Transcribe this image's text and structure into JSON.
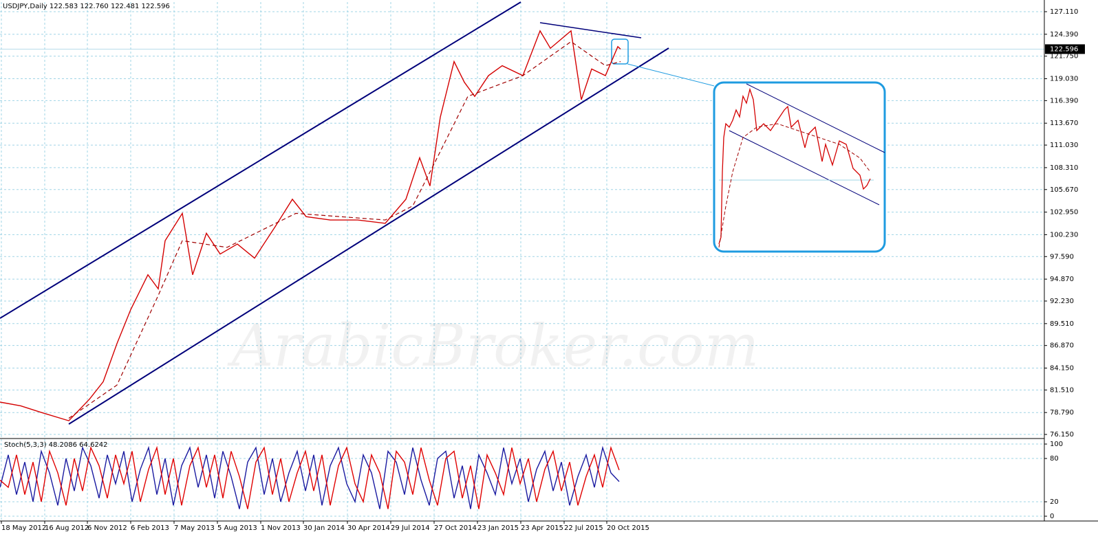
{
  "chart_data": [
    {
      "type": "line",
      "title": "USDJPY,Daily  122.583 122.760 122.481 122.596",
      "watermark": "ArabicBroker.com",
      "current_price": 122.596,
      "xlim": [
        0,
        1518
      ],
      "ylim": [
        75.74,
        128.27
      ],
      "yticks": [
        {
          "value": 127.11,
          "label": "127.110"
        },
        {
          "value": 124.39,
          "label": "124.390"
        },
        {
          "value": 121.75,
          "label": "121.750"
        },
        {
          "value": 119.03,
          "label": "119.030"
        },
        {
          "value": 116.39,
          "label": "116.390"
        },
        {
          "value": 113.67,
          "label": "113.670"
        },
        {
          "value": 111.03,
          "label": "111.030"
        },
        {
          "value": 108.31,
          "label": "108.310"
        },
        {
          "value": 105.67,
          "label": "105.670"
        },
        {
          "value": 102.95,
          "label": "102.950"
        },
        {
          "value": 100.23,
          "label": "100.230"
        },
        {
          "value": 97.59,
          "label": "97.590"
        },
        {
          "value": 94.87,
          "label": "94.870"
        },
        {
          "value": 92.23,
          "label": "92.230"
        },
        {
          "value": 89.51,
          "label": "89.510"
        },
        {
          "value": 86.87,
          "label": "86.870"
        },
        {
          "value": 84.15,
          "label": "84.150"
        },
        {
          "value": 81.51,
          "label": "81.510"
        },
        {
          "value": 78.79,
          "label": "78.790"
        },
        {
          "value": 76.15,
          "label": "76.150"
        }
      ],
      "grid": true,
      "series": [
        {
          "color": "#d40000",
          "x": [
            0,
            30,
            60,
            100,
            130,
            150,
            170,
            190,
            215,
            230,
            240,
            265,
            280,
            300,
            320,
            345,
            370,
            400,
            425,
            445,
            480,
            520,
            560,
            590,
            610,
            625,
            640,
            660,
            675,
            690,
            710,
            730,
            760,
            785,
            800,
            830,
            845,
            860,
            880,
            898,
            902
          ],
          "values": [
            80.05,
            79.6,
            78.8,
            77.8,
            80.4,
            82.5,
            87.1,
            91.2,
            95.4,
            93.7,
            99.5,
            102.8,
            95.4,
            100.4,
            97.9,
            99.1,
            97.4,
            101.2,
            104.5,
            102.4,
            102.0,
            102.0,
            101.6,
            104.5,
            109.5,
            106.1,
            114.4,
            121.1,
            118.6,
            116.9,
            119.4,
            120.6,
            119.4,
            124.8,
            122.7,
            124.8,
            116.5,
            120.2,
            119.4,
            122.9,
            122.6
          ]
        },
        {
          "color": "#a00000",
          "dashed": true,
          "x": [
            100,
            170,
            230,
            265,
            330,
            430,
            560,
            600,
            630,
            680,
            760,
            830,
            880,
            902
          ],
          "values": [
            78.1,
            82.1,
            92.9,
            99.5,
            98.7,
            102.8,
            102.0,
            103.7,
            108.6,
            116.9,
            119.4,
            123.5,
            120.6,
            121.1
          ]
        }
      ]
    },
    {
      "type": "line",
      "title": "Stoch(5,3,3) 48.2086 64.6242",
      "xlim": [
        0,
        1518
      ],
      "ylim": [
        -5.7,
        106.7
      ],
      "yticks": [
        100,
        80,
        20,
        0
      ],
      "grid": true,
      "xticks": [
        {
          "value": 2,
          "label": "18 May 2012"
        },
        {
          "value": 65,
          "label": "16 Aug 2012"
        },
        {
          "value": 127,
          "label": "6 Nov 2012"
        },
        {
          "value": 190,
          "label": "6 Feb 2013"
        },
        {
          "value": 253,
          "label": "7 May 2013"
        },
        {
          "value": 316,
          "label": "5 Aug 2013"
        },
        {
          "value": 379,
          "label": "1 Nov 2013"
        },
        {
          "value": 441,
          "label": "30 Jan 2014"
        },
        {
          "value": 505,
          "label": "30 Apr 2014"
        },
        {
          "value": 568,
          "label": "29 Jul 2014"
        },
        {
          "value": 631,
          "label": "27 Oct 2014"
        },
        {
          "value": 694,
          "label": "23 Jan 2015"
        },
        {
          "value": 757,
          "label": "23 Apr 2015"
        },
        {
          "value": 820,
          "label": "22 Jul 2015"
        },
        {
          "value": 882,
          "label": "20 Oct 2015"
        }
      ],
      "series": [
        {
          "color": "#1a1aa0",
          "x": [
            0,
            12,
            24,
            36,
            48,
            60,
            72,
            84,
            96,
            108,
            120,
            132,
            144,
            156,
            168,
            180,
            192,
            204,
            216,
            228,
            240,
            252,
            264,
            276,
            288,
            300,
            312,
            324,
            336,
            348,
            360,
            372,
            384,
            396,
            408,
            420,
            432,
            444,
            456,
            468,
            480,
            492,
            504,
            516,
            528,
            540,
            552,
            564,
            576,
            588,
            600,
            612,
            624,
            636,
            648,
            660,
            672,
            684,
            696,
            708,
            720,
            732,
            744,
            756,
            768,
            780,
            792,
            804,
            816,
            828,
            840,
            852,
            864,
            876,
            888,
            900
          ],
          "values": [
            40,
            85,
            30,
            75,
            20,
            90,
            60,
            15,
            80,
            35,
            95,
            70,
            25,
            85,
            45,
            90,
            20,
            65,
            95,
            30,
            80,
            15,
            70,
            95,
            40,
            85,
            25,
            90,
            55,
            10,
            75,
            95,
            30,
            80,
            20,
            60,
            90,
            35,
            85,
            15,
            70,
            95,
            45,
            20,
            85,
            60,
            10,
            90,
            75,
            30,
            95,
            50,
            15,
            80,
            90,
            25,
            70,
            10,
            85,
            60,
            30,
            95,
            45,
            80,
            20,
            65,
            90,
            35,
            75,
            15,
            55,
            85,
            40,
            95,
            60,
            48
          ]
        },
        {
          "color": "#e00000",
          "x": [
            0,
            12,
            24,
            36,
            48,
            60,
            72,
            84,
            96,
            108,
            120,
            132,
            144,
            156,
            168,
            180,
            192,
            204,
            216,
            228,
            240,
            252,
            264,
            276,
            288,
            300,
            312,
            324,
            336,
            348,
            360,
            372,
            384,
            396,
            408,
            420,
            432,
            444,
            456,
            468,
            480,
            492,
            504,
            516,
            528,
            540,
            552,
            564,
            576,
            588,
            600,
            612,
            624,
            636,
            648,
            660,
            672,
            684,
            696,
            708,
            720,
            732,
            744,
            756,
            768,
            780,
            792,
            804,
            816,
            828,
            840,
            852,
            864,
            876,
            888,
            900
          ],
          "values": [
            50,
            40,
            85,
            30,
            75,
            20,
            90,
            60,
            15,
            80,
            35,
            95,
            70,
            25,
            85,
            45,
            90,
            20,
            65,
            95,
            30,
            80,
            15,
            70,
            95,
            40,
            85,
            25,
            90,
            55,
            10,
            75,
            95,
            30,
            80,
            20,
            60,
            90,
            35,
            85,
            15,
            70,
            95,
            45,
            20,
            85,
            60,
            10,
            90,
            75,
            30,
            95,
            50,
            15,
            80,
            90,
            25,
            70,
            10,
            85,
            60,
            30,
            95,
            45,
            80,
            20,
            65,
            90,
            35,
            75,
            15,
            55,
            85,
            40,
            95,
            64
          ]
        }
      ]
    }
  ]
}
